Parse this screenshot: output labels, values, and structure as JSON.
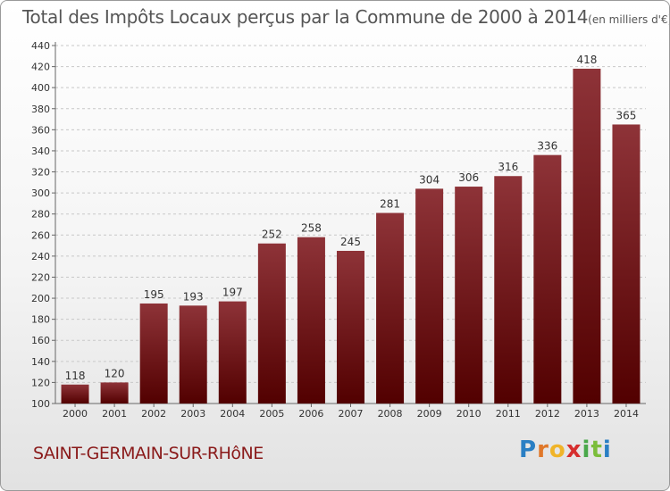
{
  "title": "Total des Impôts Locaux perçus par la Commune de 2000 à 2014",
  "unit": "(en milliers d'€)",
  "commune": "SAINT-GERMAIN-SUR-RHôNE",
  "brand": "Proxiti",
  "colors": {
    "bar_top": "#8e3338",
    "bar_bottom": "#520000",
    "accent": "#8a1a1a"
  },
  "chart_data": {
    "type": "bar",
    "title": "Total des Impôts Locaux perçus par la Commune de 2000 à 2014",
    "xlabel": "",
    "ylabel": "",
    "categories": [
      "2000",
      "2001",
      "2002",
      "2003",
      "2004",
      "2005",
      "2006",
      "2007",
      "2008",
      "2009",
      "2010",
      "2011",
      "2012",
      "2013",
      "2014"
    ],
    "values": [
      118,
      120,
      195,
      193,
      197,
      252,
      258,
      245,
      281,
      304,
      306,
      316,
      336,
      418,
      365
    ],
    "ylim": [
      100,
      440
    ],
    "yticks": [
      100,
      120,
      140,
      160,
      180,
      200,
      220,
      240,
      260,
      280,
      300,
      320,
      340,
      360,
      380,
      400,
      420,
      440
    ],
    "grid": true,
    "legend": "none"
  }
}
